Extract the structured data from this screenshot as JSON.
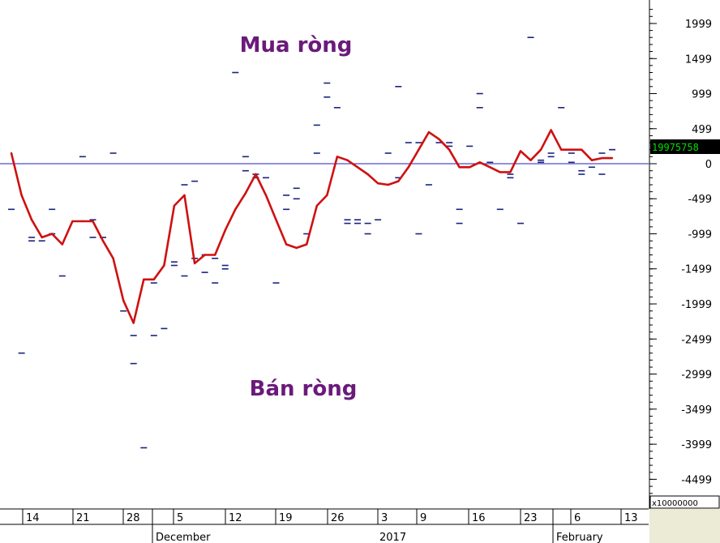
{
  "chart_data": {
    "type": "line",
    "title": "",
    "xlabel": "",
    "ylabel": "",
    "ylim": [
      -4800,
      2200
    ],
    "y_ticks": [
      1999,
      1499,
      999,
      499,
      0,
      -499,
      -999,
      -1499,
      -1999,
      -2499,
      -2999,
      -3499,
      -3999,
      -4499
    ],
    "y_unit_label": "x10000000",
    "last_value_label": "19975758",
    "zero_line": 0,
    "x_day_ticks": [
      "14",
      "21",
      "28",
      "5",
      "12",
      "19",
      "26",
      "3",
      "9",
      "16",
      "23",
      "6",
      "13"
    ],
    "x_month_labels": [
      "December",
      "2017",
      "February"
    ],
    "annotations": {
      "buy": "Mua ròng",
      "sell": "Bán ròng"
    },
    "colors": {
      "line": "#d01010",
      "zero_line": "#2020c0",
      "markers": "#1a237e",
      "annotation": "#6a1a7a",
      "last_value_bg": "#000000",
      "last_value_fg": "#00e000"
    },
    "series": [
      {
        "style": "line",
        "values": [
          150,
          -450,
          -800,
          -1050,
          -1000,
          -1150,
          -820,
          -820,
          -820,
          -1100,
          -1350,
          -1950,
          -2270,
          -1650,
          -1650,
          -1450,
          -600,
          -450,
          -1420,
          -1300,
          -1300,
          -950,
          -650,
          -420,
          -150,
          -450,
          -800,
          -1150,
          -1200,
          -1150,
          -600,
          -450,
          100,
          50,
          -50,
          -150,
          -280,
          -300,
          -250,
          -50,
          200,
          450,
          350,
          200,
          -50,
          -50,
          20,
          -50,
          -120,
          -120,
          180,
          50,
          200,
          480,
          200,
          200,
          200,
          50,
          80,
          80
        ]
      },
      {
        "style": "marker",
        "values": [
          -650,
          -2700,
          -1100,
          -1100,
          -650,
          -1600,
          null,
          100,
          -1050,
          -1050,
          150,
          -2100,
          -2850,
          -4050,
          -2450,
          -2350,
          -1400,
          -1600,
          -250,
          -1550,
          -1700,
          -1450,
          1300,
          100,
          -200,
          null,
          -1700,
          -450,
          -500,
          -1000,
          550,
          1150,
          800,
          -850,
          -850,
          -1000,
          -800,
          150,
          1100,
          300,
          -1000,
          -300,
          300,
          250,
          -650,
          250,
          1000,
          20,
          -650,
          -150,
          -850,
          1800,
          20,
          100,
          800,
          20,
          -150,
          -50,
          -150,
          200
        ]
      },
      {
        "style": "marker",
        "values": [
          null,
          null,
          -1050,
          null,
          -1000,
          null,
          null,
          null,
          -800,
          null,
          null,
          null,
          -2450,
          null,
          -1700,
          null,
          -1450,
          -300,
          -1350,
          -1300,
          -1350,
          -1500,
          null,
          -100,
          -150,
          -200,
          null,
          -650,
          -350,
          null,
          150,
          950,
          null,
          -800,
          -800,
          -850,
          null,
          null,
          -200,
          null,
          300,
          null,
          null,
          300,
          -850,
          null,
          800,
          null,
          null,
          -200,
          null,
          null,
          50,
          150,
          null,
          150,
          -100,
          null,
          150,
          200
        ]
      }
    ]
  }
}
